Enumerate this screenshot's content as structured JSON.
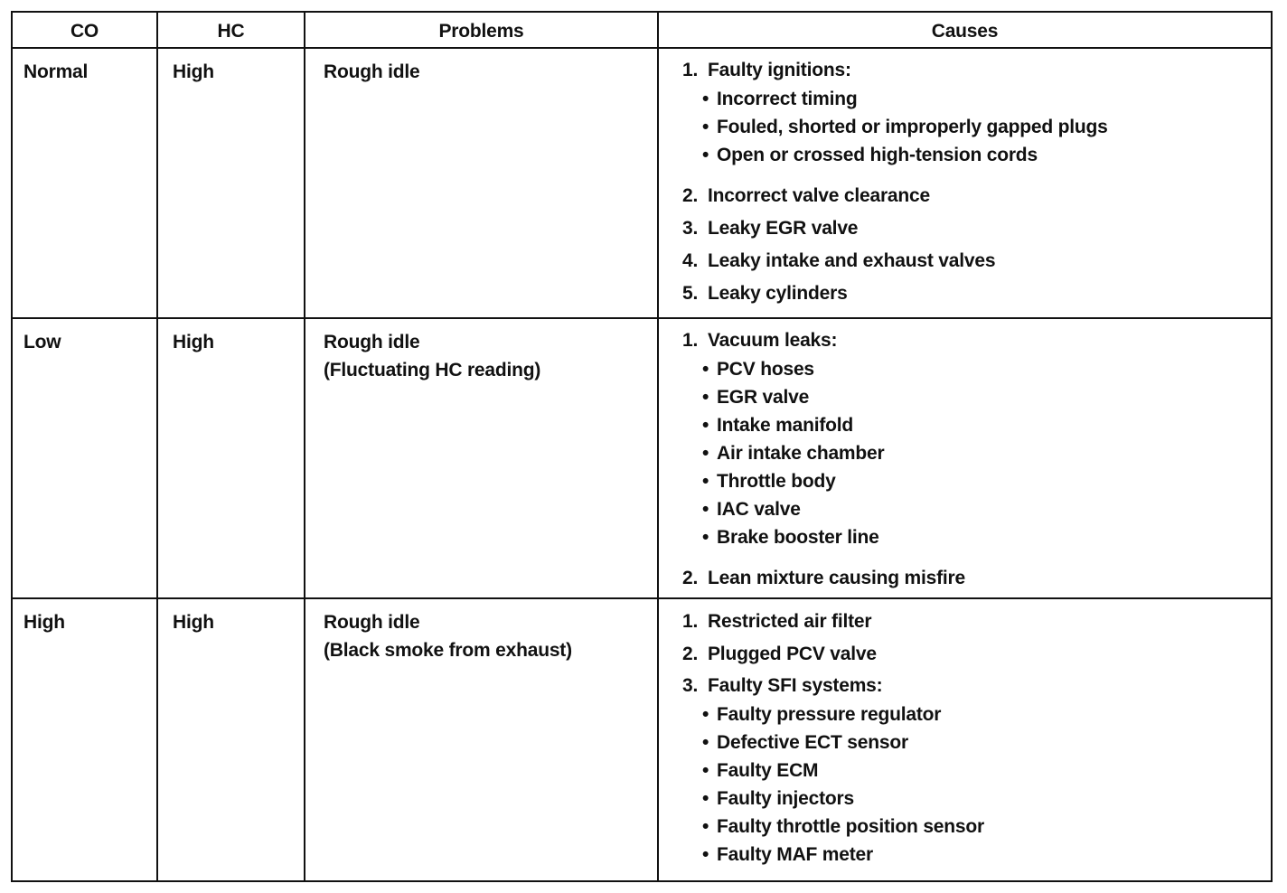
{
  "headers": [
    "CO",
    "HC",
    "Problems",
    "Causes"
  ],
  "rows": [
    {
      "co": "Normal",
      "hc": "High",
      "problems": [
        "Rough idle"
      ],
      "causes": [
        {
          "num": "1.",
          "text": "Faulty ignitions:",
          "bullets": [
            "Incorrect timing",
            "Fouled, shorted or improperly gapped plugs",
            "Open or crossed high-tension cords"
          ]
        },
        {
          "num": "2.",
          "text": "Incorrect valve clearance",
          "bullets": []
        },
        {
          "num": "3.",
          "text": "Leaky EGR valve",
          "bullets": []
        },
        {
          "num": "4.",
          "text": "Leaky intake and exhaust valves",
          "bullets": []
        },
        {
          "num": "5.",
          "text": "Leaky cylinders",
          "bullets": []
        }
      ]
    },
    {
      "co": "Low",
      "hc": "High",
      "problems": [
        "Rough idle",
        "(Fluctuating HC reading)"
      ],
      "causes": [
        {
          "num": "1.",
          "text": "Vacuum leaks:",
          "bullets": [
            "PCV hoses",
            "EGR valve",
            "Intake manifold",
            "Air intake chamber",
            "Throttle body",
            "IAC valve",
            "Brake booster line"
          ]
        },
        {
          "num": "2.",
          "text": "Lean mixture causing misfire",
          "bullets": []
        }
      ]
    },
    {
      "co": "High",
      "hc": "High",
      "problems": [
        "Rough idle",
        "(Black smoke from exhaust)"
      ],
      "causes": [
        {
          "num": "1.",
          "text": "Restricted air filter",
          "bullets": []
        },
        {
          "num": "2.",
          "text": "Plugged PCV valve",
          "bullets": []
        },
        {
          "num": "3.",
          "text": "Faulty SFI systems:",
          "bullets": [
            "Faulty pressure regulator",
            "Defective ECT sensor",
            "Faulty ECM",
            "Faulty injectors",
            "Faulty throttle position sensor",
            "Faulty MAF meter"
          ]
        }
      ]
    }
  ]
}
